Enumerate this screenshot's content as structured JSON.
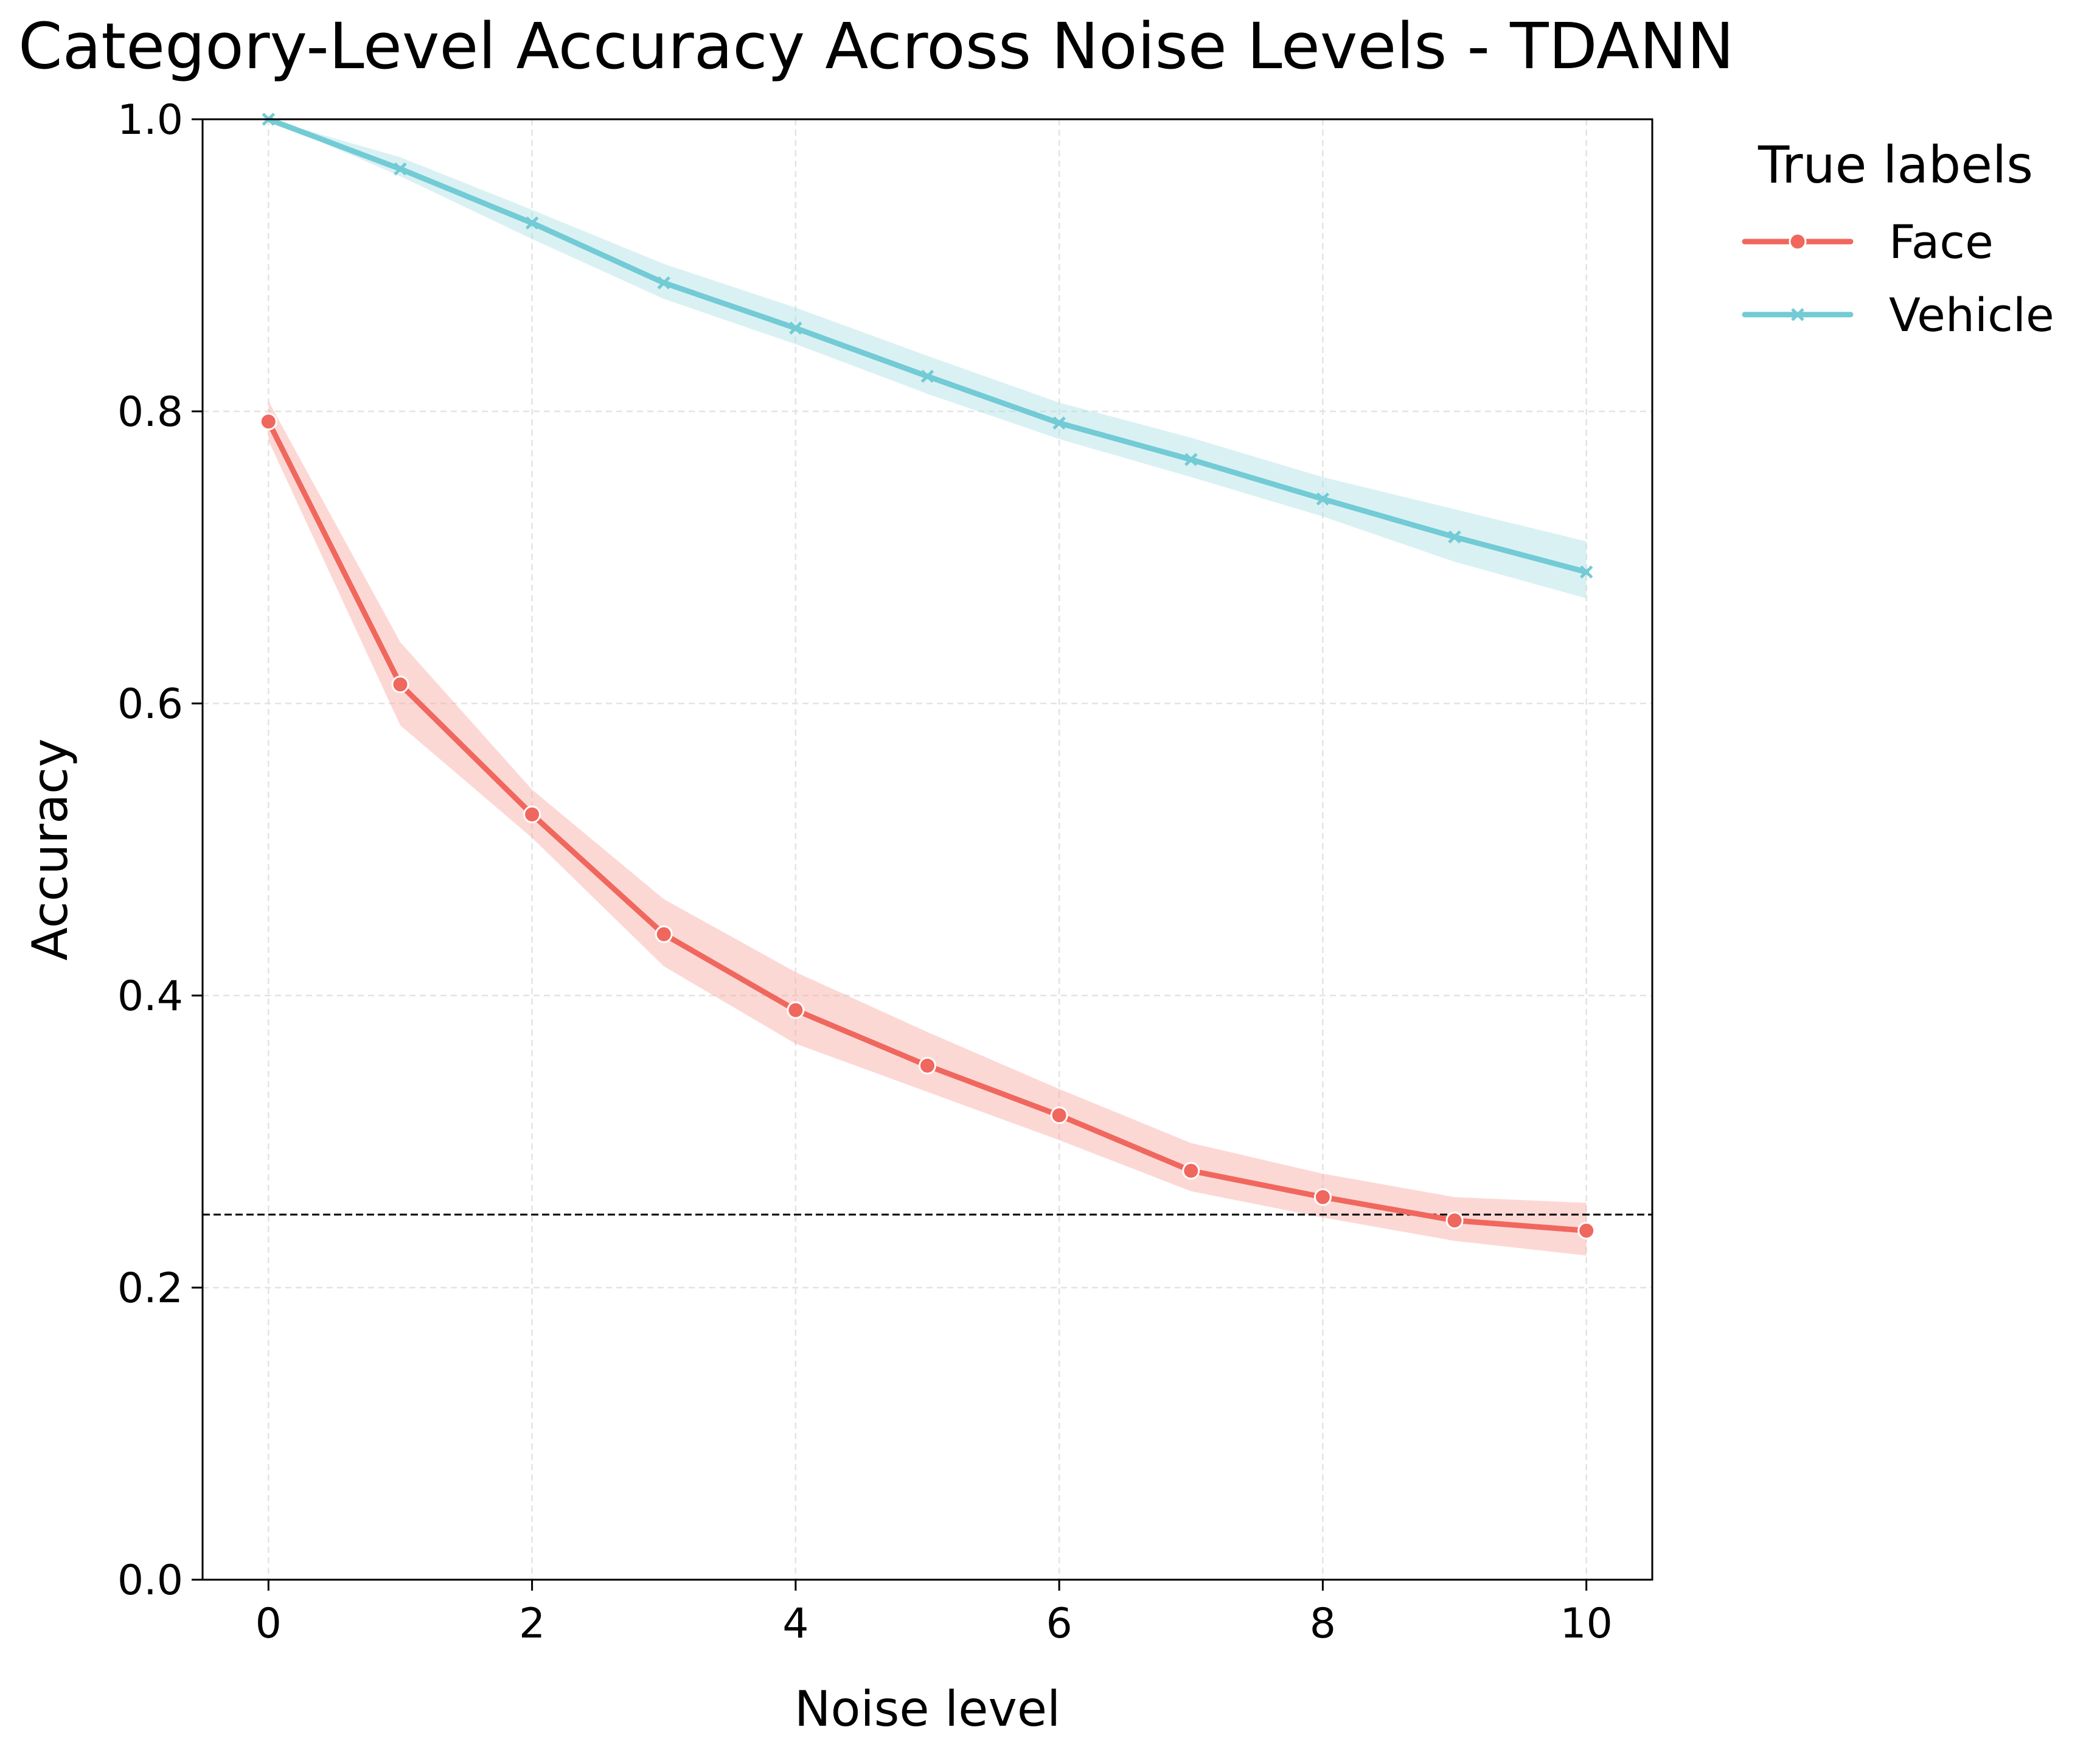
{
  "chart_data": {
    "type": "line",
    "title": "Category-Level Accuracy Across Noise Levels - TDANN",
    "xlabel": "Noise level",
    "ylabel": "Accuracy",
    "xlim": [
      -0.5,
      10.5
    ],
    "ylim": [
      0.0,
      1.0
    ],
    "x_ticks": [
      "0",
      "2",
      "4",
      "6",
      "8",
      "10"
    ],
    "y_ticks": [
      "0.0",
      "0.2",
      "0.4",
      "0.6",
      "0.8",
      "1.0"
    ],
    "grid": true,
    "legend": {
      "title": "True labels",
      "placement": "outside-right"
    },
    "chance_line": 0.25,
    "x": [
      0,
      1,
      2,
      3,
      4,
      5,
      6,
      7,
      8,
      9,
      10
    ],
    "series": [
      {
        "name": "Face",
        "color": "#f0675e",
        "band_color": "#f8a8a2",
        "marker": "circle",
        "values": [
          0.793,
          0.613,
          0.524,
          0.442,
          0.39,
          0.352,
          0.318,
          0.28,
          0.262,
          0.246,
          0.239
        ],
        "lower": [
          0.78,
          0.585,
          0.508,
          0.42,
          0.367,
          0.334,
          0.301,
          0.266,
          0.248,
          0.232,
          0.222
        ],
        "upper": [
          0.807,
          0.642,
          0.541,
          0.466,
          0.416,
          0.375,
          0.336,
          0.299,
          0.278,
          0.262,
          0.258
        ]
      },
      {
        "name": "Vehicle",
        "color": "#72cbd5",
        "band_color": "#aee1e6",
        "marker": "x",
        "values": [
          1.0,
          0.966,
          0.929,
          0.888,
          0.857,
          0.824,
          0.792,
          0.767,
          0.74,
          0.714,
          0.69
        ],
        "lower": [
          1.0,
          0.961,
          0.918,
          0.877,
          0.846,
          0.812,
          0.781,
          0.755,
          0.728,
          0.697,
          0.672
        ],
        "upper": [
          1.0,
          0.974,
          0.938,
          0.901,
          0.871,
          0.838,
          0.806,
          0.782,
          0.755,
          0.733,
          0.711
        ]
      }
    ]
  }
}
